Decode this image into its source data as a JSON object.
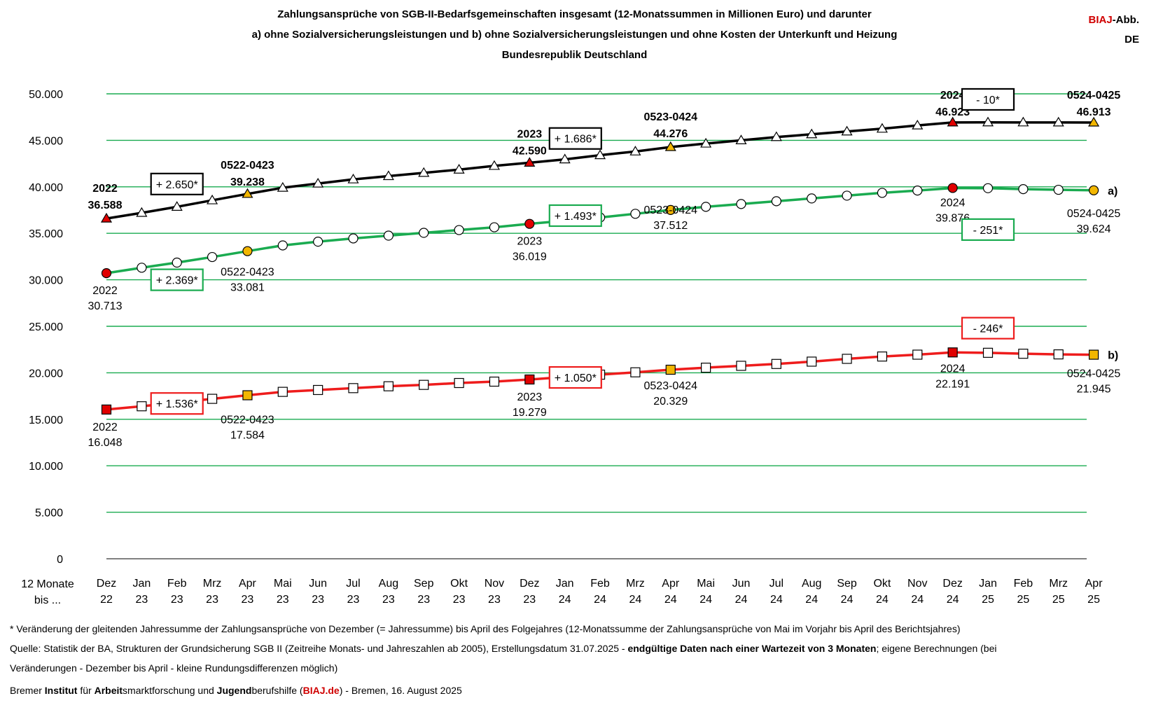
{
  "header": {
    "title_line1": "Zahlungsansprüche von SGB-II-Bedarfsgemeinschaften insgesamt (12-Monatssummen in Millionen Euro) und darunter",
    "title_line2": "a) ohne Sozialversicherungsleistungen und b) ohne Sozialversicherungsleistungen und ohne Kosten der Unterkunft und Heizung",
    "title_line3": "Bundesrepublik Deutschland",
    "brand_red": "BIAJ",
    "brand_black": "-Abb.",
    "brand_line2": "DE"
  },
  "chart_data": {
    "type": "line",
    "ylim": [
      0,
      50000
    ],
    "yticks": [
      "0",
      "5.000",
      "10.000",
      "15.000",
      "20.000",
      "25.000",
      "30.000",
      "35.000",
      "40.000",
      "45.000",
      "50.000"
    ],
    "x_axis_label": [
      "12 Monate",
      "bis ..."
    ],
    "categories": [
      [
        "Dez",
        "22"
      ],
      [
        "Jan",
        "23"
      ],
      [
        "Feb",
        "23"
      ],
      [
        "Mrz",
        "23"
      ],
      [
        "Apr",
        "23"
      ],
      [
        "Mai",
        "23"
      ],
      [
        "Jun",
        "23"
      ],
      [
        "Jul",
        "23"
      ],
      [
        "Aug",
        "23"
      ],
      [
        "Sep",
        "23"
      ],
      [
        "Okt",
        "23"
      ],
      [
        "Nov",
        "23"
      ],
      [
        "Dez",
        "23"
      ],
      [
        "Jan",
        "24"
      ],
      [
        "Feb",
        "24"
      ],
      [
        "Mrz",
        "24"
      ],
      [
        "Apr",
        "24"
      ],
      [
        "Mai",
        "24"
      ],
      [
        "Jun",
        "24"
      ],
      [
        "Jul",
        "24"
      ],
      [
        "Aug",
        "24"
      ],
      [
        "Sep",
        "24"
      ],
      [
        "Okt",
        "24"
      ],
      [
        "Nov",
        "24"
      ],
      [
        "Dez",
        "24"
      ],
      [
        "Jan",
        "25"
      ],
      [
        "Feb",
        "25"
      ],
      [
        "Mrz",
        "25"
      ],
      [
        "Apr",
        "25"
      ]
    ],
    "series": [
      {
        "line_color": "#000000",
        "marker": "triangle",
        "values": [
          36588,
          37200,
          37850,
          38550,
          39238,
          39900,
          40350,
          40800,
          41150,
          41500,
          41850,
          42250,
          42590,
          42950,
          43400,
          43800,
          44276,
          44650,
          45000,
          45350,
          45650,
          45950,
          46250,
          46600,
          46923,
          46930,
          46925,
          46920,
          46913
        ]
      },
      {
        "name": "a)",
        "line_color": "#1aab50",
        "marker": "circle",
        "values": [
          30713,
          31300,
          31850,
          32450,
          33081,
          33700,
          34100,
          34450,
          34750,
          35050,
          35350,
          35650,
          36019,
          36350,
          36700,
          37100,
          37512,
          37850,
          38150,
          38450,
          38750,
          39050,
          39350,
          39600,
          39876,
          39850,
          39750,
          39680,
          39624
        ]
      },
      {
        "name": "b)",
        "line_color": "#ee1c1c",
        "marker": "square",
        "values": [
          16048,
          16400,
          16800,
          17200,
          17584,
          17950,
          18150,
          18350,
          18550,
          18700,
          18900,
          19050,
          19279,
          19550,
          19800,
          20050,
          20329,
          20550,
          20750,
          20950,
          21200,
          21500,
          21750,
          21950,
          22191,
          22150,
          22050,
          21980,
          21945
        ]
      }
    ],
    "highlight_colors": {
      "december": "#e00000",
      "april": "#f2b600",
      "other": "#ffffff"
    },
    "value_labels": {
      "top": [
        {
          "period": "2022",
          "value": "36.588"
        },
        {
          "period": "0522-0423",
          "value": "39.238"
        },
        {
          "period": "2023",
          "value": "42.590"
        },
        {
          "period": "0523-0424",
          "value": "44.276"
        },
        {
          "period": "2024",
          "value": "46.923"
        },
        {
          "period": "0524-0425",
          "value": "46.913"
        }
      ],
      "a": [
        {
          "period": "2022",
          "value": "30.713"
        },
        {
          "period": "0522-0423",
          "value": "33.081"
        },
        {
          "period": "2023",
          "value": "36.019"
        },
        {
          "period": "0523-0424",
          "value": "37.512"
        },
        {
          "period": "2024",
          "value": "39.876"
        },
        {
          "period": "0524-0425",
          "value": "39.624"
        }
      ],
      "b": [
        {
          "period": "2022",
          "value": "16.048"
        },
        {
          "period": "0522-0423",
          "value": "17.584"
        },
        {
          "period": "2023",
          "value": "19.279"
        },
        {
          "period": "0523-0424",
          "value": "20.329"
        },
        {
          "period": "2024",
          "value": "22.191"
        },
        {
          "period": "0524-0425",
          "value": "21.945"
        }
      ]
    },
    "change_boxes": {
      "top": [
        "+ 2.650*",
        "+ 1.686*",
        "- 10*"
      ],
      "a": [
        "+ 2.369*",
        "+ 1.493*",
        "- 251*"
      ],
      "b": [
        "+ 1.536*",
        "+ 1.050*",
        "- 246*"
      ]
    },
    "grid": true
  },
  "footer": {
    "note": "* Veränderung der gleitenden Jahressumme der Zahlungsansprüche von Dezember (= Jahressumme)  bis April des Folgejahres (12-Monatssumme der Zahlungsansprüche von Mai im Vorjahr bis April des Berichtsjahres)",
    "source_part1": "Quelle: Statistik der BA, Strukturen der Grundsicherung SGB II (Zeitreihe Monats- und Jahreszahlen ab 2005), Erstellungsdatum 31.07.2025 - ",
    "source_bold": "endgültige Daten nach einer Wartezeit von 3 Monaten",
    "source_part2": "; eigene Berechnungen (bei",
    "source_line2": "Veränderungen - Dezember bis April - kleine Rundungsdifferenzen möglich)",
    "institute_w1": "Bremer ",
    "institute_b1": "Institut",
    "institute_w2": " für ",
    "institute_b2": "Arbeit",
    "institute_w3": "smarktforschung und ",
    "institute_b3": "Jugend",
    "institute_w4": "berufshilfe (",
    "institute_link": "BIAJ.de",
    "institute_w5": ") - Bremen, 16. August 2025"
  }
}
